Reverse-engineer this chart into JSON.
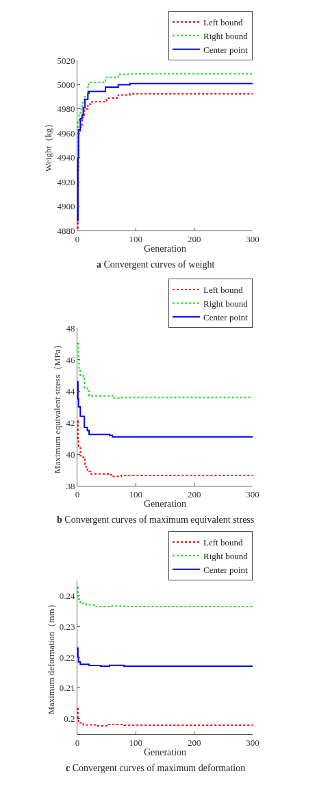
{
  "chart_data": [
    {
      "type": "step",
      "title": "a Convergent curves of weight",
      "xlabel": "Generation",
      "ylabel": "Weight（kg）",
      "xlim": [
        0,
        300
      ],
      "xticks": [
        0,
        100,
        200,
        300
      ],
      "ylim": [
        4880,
        5020
      ],
      "yticks": [
        4880,
        4900,
        4920,
        4940,
        4960,
        4980,
        5000,
        5020
      ],
      "legend": "top right",
      "series": [
        {
          "name": "Left bound",
          "color": "#ff0000",
          "line_style": "dotted",
          "x": [
            0,
            1,
            2,
            5,
            8,
            12,
            18,
            25,
            47,
            50,
            68,
            70,
            90,
            300
          ],
          "values": [
            4882,
            4930,
            4962,
            4965,
            4973,
            4980,
            4984,
            4986,
            4986,
            4989,
            4990,
            4991.5,
            4992.5,
            4992.5
          ]
        },
        {
          "name": "Right bound",
          "color": "#22dd22",
          "line_style": "dotted",
          "x": [
            0,
            1,
            3,
            5,
            8,
            12,
            18,
            20,
            45,
            48,
            65,
            70,
            90,
            300
          ],
          "values": [
            4965,
            4970,
            4975,
            4980,
            4985,
            4990,
            4998,
            5002,
            5003,
            5006,
            5006.5,
            5008.5,
            5009,
            5009
          ]
        },
        {
          "name": "Center point",
          "color": "#0000ff",
          "line_style": "solid",
          "x": [
            0,
            1,
            2,
            5,
            8,
            10,
            13,
            18,
            20,
            45,
            48,
            65,
            70,
            90,
            300
          ],
          "values": [
            4888,
            4940,
            4963,
            4972,
            4975,
            4981,
            4988,
            4993,
            4994.5,
            4994.5,
            4998,
            4998,
            5000,
            5001,
            5001
          ]
        }
      ]
    },
    {
      "type": "step",
      "title": "b Convergent curves of maximum equivalent stress",
      "xlabel": "Generation",
      "ylabel": "Maximum equivalent stress（MPa）",
      "xlim": [
        0,
        300
      ],
      "xticks": [
        0,
        100,
        200,
        300
      ],
      "ylim": [
        38,
        48
      ],
      "yticks": [
        38,
        40,
        42,
        44,
        46,
        48
      ],
      "legend": "top right",
      "series": [
        {
          "name": "Left bound",
          "color": "#ff0000",
          "line_style": "dotted",
          "x": [
            0,
            1,
            2,
            5,
            10,
            13,
            17,
            22,
            55,
            60,
            75,
            300
          ],
          "values": [
            42.1,
            41.0,
            40.5,
            39.9,
            39.8,
            39.2,
            38.9,
            38.75,
            38.7,
            38.6,
            38.65,
            38.65
          ]
        },
        {
          "name": "Right bound",
          "color": "#22dd22",
          "line_style": "dotted",
          "x": [
            0,
            2,
            3,
            5,
            10,
            12,
            17,
            20,
            55,
            60,
            75,
            300
          ],
          "values": [
            47.0,
            46.0,
            45.3,
            45.0,
            44.9,
            44.2,
            44.0,
            43.7,
            43.7,
            43.55,
            43.6,
            43.6
          ]
        },
        {
          "name": "Center point",
          "color": "#0000ff",
          "line_style": "solid",
          "x": [
            0,
            1,
            2,
            5,
            9,
            12,
            17,
            20,
            55,
            60,
            75,
            300
          ],
          "values": [
            44.6,
            43.5,
            43.0,
            42.4,
            42.4,
            41.7,
            41.5,
            41.25,
            41.2,
            41.1,
            41.1,
            41.1
          ]
        }
      ]
    },
    {
      "type": "step",
      "title": "c Convergent curves of maximum deformation",
      "xlabel": "Generation",
      "ylabel": "Maximum deformation（mm）",
      "xlim": [
        0,
        300
      ],
      "xticks": [
        0,
        100,
        200,
        300
      ],
      "ylim": [
        0.195,
        0.245
      ],
      "yticks": [
        {
          "value": 0.2,
          "label": "0.2"
        },
        0.21,
        0.22,
        0.23,
        0.24
      ],
      "legend": "top right",
      "series": [
        {
          "name": "Left bound",
          "color": "#ff0000",
          "line_style": "dotted",
          "x": [
            0,
            1,
            2,
            10,
            35,
            50,
            80,
            300
          ],
          "values": [
            0.2033,
            0.2,
            0.1987,
            0.198,
            0.1977,
            0.1981,
            0.1979,
            0.1979
          ]
        },
        {
          "name": "Right bound",
          "color": "#22dd22",
          "line_style": "dotted",
          "x": [
            0,
            1,
            2,
            5,
            15,
            30,
            55,
            80,
            300
          ],
          "values": [
            0.2427,
            0.24,
            0.2389,
            0.2375,
            0.237,
            0.2365,
            0.2367,
            0.2365,
            0.2365
          ]
        },
        {
          "name": "Center point",
          "color": "#0000ff",
          "line_style": "solid",
          "x": [
            0,
            1,
            2,
            5,
            20,
            40,
            55,
            80,
            300
          ],
          "values": [
            0.223,
            0.22,
            0.2185,
            0.2177,
            0.2173,
            0.2171,
            0.2174,
            0.2171,
            0.2171
          ]
        }
      ]
    }
  ]
}
